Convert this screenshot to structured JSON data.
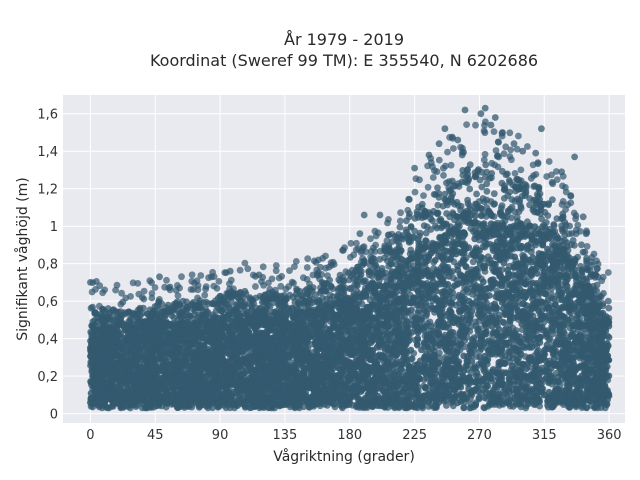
{
  "chart_data": {
    "type": "scatter",
    "title_line1": "År 1979 - 2019",
    "title_line2": "Koordinat (Sweref 99 TM): E 355540, N 6202686",
    "xlabel": "Vågriktning (grader)",
    "ylabel": "Signifikant våghöjd (m)",
    "xlim": [
      -19,
      371
    ],
    "ylim": [
      -0.05,
      1.7
    ],
    "x_ticks": [
      0,
      45,
      90,
      135,
      180,
      225,
      270,
      315,
      360
    ],
    "x_tick_labels": [
      "0",
      "45",
      "90",
      "135",
      "180",
      "225",
      "270",
      "315",
      "360"
    ],
    "y_ticks": [
      0,
      0.2,
      0.4,
      0.6,
      0.8,
      1.0,
      1.2,
      1.4,
      1.6
    ],
    "y_tick_labels": [
      "0",
      "0,2",
      "0,4",
      "0,6",
      "0,8",
      "1",
      "1,2",
      "1,4",
      "1,6"
    ],
    "grid": true,
    "marker_color": "#33596f",
    "background_color": "#e9e9f0",
    "envelope": [
      {
        "x": 0,
        "y": 0.58
      },
      {
        "x": 20,
        "y": 0.55
      },
      {
        "x": 40,
        "y": 0.58
      },
      {
        "x": 60,
        "y": 0.6
      },
      {
        "x": 80,
        "y": 0.6
      },
      {
        "x": 100,
        "y": 0.66
      },
      {
        "x": 120,
        "y": 0.64
      },
      {
        "x": 140,
        "y": 0.66
      },
      {
        "x": 160,
        "y": 0.7
      },
      {
        "x": 180,
        "y": 0.76
      },
      {
        "x": 200,
        "y": 0.85
      },
      {
        "x": 220,
        "y": 1.05
      },
      {
        "x": 240,
        "y": 1.2
      },
      {
        "x": 255,
        "y": 1.3
      },
      {
        "x": 270,
        "y": 1.35
      },
      {
        "x": 285,
        "y": 1.3
      },
      {
        "x": 300,
        "y": 1.25
      },
      {
        "x": 315,
        "y": 1.2
      },
      {
        "x": 330,
        "y": 1.05
      },
      {
        "x": 345,
        "y": 0.85
      },
      {
        "x": 360,
        "y": 0.6
      }
    ],
    "outliers": [
      {
        "x": 0,
        "y": 0.7
      },
      {
        "x": 48,
        "y": 0.73
      },
      {
        "x": 97,
        "y": 0.76
      },
      {
        "x": 117,
        "y": 0.74
      },
      {
        "x": 187,
        "y": 0.96
      },
      {
        "x": 190,
        "y": 1.06
      },
      {
        "x": 201,
        "y": 1.06
      },
      {
        "x": 225,
        "y": 1.31
      },
      {
        "x": 235,
        "y": 1.38
      },
      {
        "x": 242,
        "y": 1.44
      },
      {
        "x": 246,
        "y": 1.52
      },
      {
        "x": 255,
        "y": 1.46
      },
      {
        "x": 258,
        "y": 1.38
      },
      {
        "x": 260,
        "y": 1.62
      },
      {
        "x": 271,
        "y": 1.6
      },
      {
        "x": 274,
        "y": 1.63
      },
      {
        "x": 278,
        "y": 1.54
      },
      {
        "x": 281,
        "y": 1.58
      },
      {
        "x": 283,
        "y": 1.45
      },
      {
        "x": 286,
        "y": 1.5
      },
      {
        "x": 294,
        "y": 1.44
      },
      {
        "x": 300,
        "y": 1.4
      },
      {
        "x": 309,
        "y": 1.39
      },
      {
        "x": 313,
        "y": 1.52
      },
      {
        "x": 327,
        "y": 1.29
      },
      {
        "x": 336,
        "y": 1.37
      },
      {
        "x": 342,
        "y": 1.05
      },
      {
        "x": 344,
        "y": 0.96
      }
    ]
  }
}
